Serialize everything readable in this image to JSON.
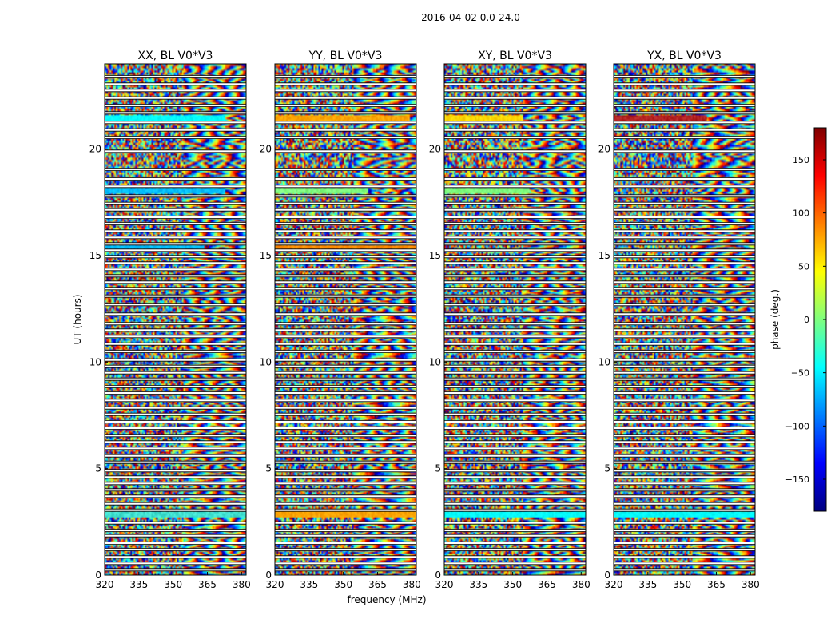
{
  "figure": {
    "suptitle": "2016-04-02 0.0-24.0"
  },
  "chart_data": {
    "type": "heatmap",
    "panels": [
      {
        "title": "XX, BL V0*V3",
        "bright": [
          [
            21.2,
            21.6,
            "#00ffff",
            0.0,
            0.85
          ],
          [
            17.9,
            18.2,
            "#00bfff",
            0.0,
            0.85
          ],
          [
            2.75,
            2.95,
            "#40e0d0",
            0.0,
            1.0
          ],
          [
            15.3,
            15.5,
            "#00bfff",
            0.0,
            0.7
          ]
        ]
      },
      {
        "title": "YY, BL V0*V3",
        "bright": [
          [
            21.2,
            21.6,
            "#ffa500",
            0.0,
            0.95
          ],
          [
            17.9,
            18.2,
            "#7fff7f",
            0.0,
            0.65
          ],
          [
            2.75,
            3.05,
            "#ffa500",
            0.0,
            1.0
          ],
          [
            15.3,
            15.5,
            "#ff8c00",
            0.0,
            1.0
          ]
        ]
      },
      {
        "title": "XY, BL V0*V3",
        "bright": [
          [
            21.2,
            21.6,
            "#ffd700",
            0.0,
            0.55
          ],
          [
            17.9,
            18.2,
            "#7fff7f",
            0.0,
            0.6
          ],
          [
            2.75,
            2.95,
            "#00ffff",
            0.0,
            1.0
          ]
        ]
      },
      {
        "title": "YX, BL V0*V3",
        "bright": [
          [
            21.2,
            21.6,
            "#b22222",
            0.0,
            0.65
          ],
          [
            2.75,
            2.95,
            "#00ffff",
            0.0,
            1.0
          ]
        ]
      }
    ],
    "xlabel": "frequency (MHz)",
    "ylabel": "UT (hours)",
    "xlim": [
      320,
      382
    ],
    "ylim": [
      0,
      24
    ],
    "x_ticks": [
      "320",
      "335",
      "350",
      "365",
      "380"
    ],
    "x_tick_values": [
      320,
      335,
      350,
      365,
      380
    ],
    "y_ticks": [
      "0",
      "5",
      "10",
      "15",
      "20"
    ],
    "y_tick_values": [
      0,
      5,
      10,
      15,
      20
    ],
    "colorbar": {
      "label": "phase (deg.)",
      "range": [
        -180,
        180
      ],
      "ticks": [
        "150",
        "100",
        "50",
        "0",
        "−50",
        "−100",
        "−150"
      ],
      "tick_values": [
        150,
        100,
        50,
        0,
        -50,
        -100,
        -150
      ],
      "colormap": "jet"
    },
    "gap_times": [
      0.25,
      0.55,
      0.85,
      1.2,
      1.5,
      1.85,
      2.1,
      2.45,
      3.05,
      3.35,
      3.7,
      4.0,
      4.3,
      4.6,
      4.9,
      5.3,
      5.6,
      5.95,
      6.25,
      6.55,
      6.9,
      7.2,
      7.55,
      7.85,
      8.2,
      8.55,
      8.85,
      9.2,
      9.5,
      9.8,
      10.1,
      10.5,
      10.85,
      11.2,
      11.5,
      11.8,
      12.25,
      12.7,
      13.1,
      13.45,
      13.75,
      14.05,
      14.35,
      14.65,
      14.95,
      15.25,
      15.55,
      15.85,
      16.15,
      16.5,
      16.8,
      17.15,
      17.45,
      17.8,
      18.25,
      18.6,
      19.05,
      19.9,
      20.55,
      20.9,
      21.25,
      21.7,
      22.05,
      22.4,
      22.75,
      23.05,
      23.4
    ]
  }
}
